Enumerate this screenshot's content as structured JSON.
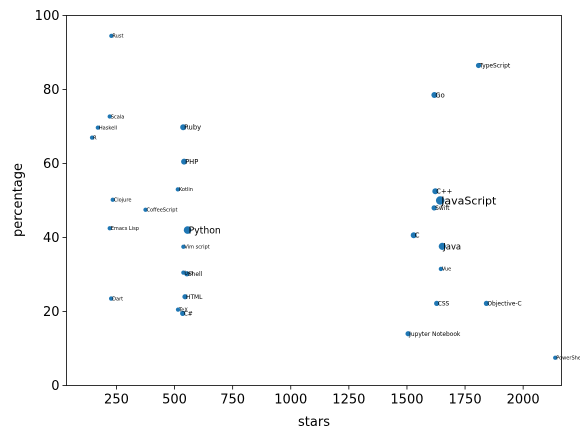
{
  "chart_data": {
    "type": "scatter",
    "title": "",
    "xlabel": "stars",
    "ylabel": "percentage",
    "xlim": [
      35,
      2165
    ],
    "ylim": [
      0,
      100
    ],
    "xticks": [
      250,
      500,
      750,
      1000,
      1250,
      1500,
      1750,
      2000
    ],
    "yticks": [
      0,
      20,
      40,
      60,
      80,
      100
    ],
    "point_color": "#1f77b4",
    "grid": false,
    "points": [
      {
        "label": "Rust",
        "x": 228,
        "y": 94.5,
        "size": 1
      },
      {
        "label": "TypeScript",
        "x": 1808,
        "y": 86.5,
        "size": 2
      },
      {
        "label": "Go",
        "x": 1618,
        "y": 78.5,
        "size": 3
      },
      {
        "label": "Scala",
        "x": 221,
        "y": 72.7,
        "size": 1
      },
      {
        "label": "Haskell",
        "x": 170,
        "y": 69.7,
        "size": 1
      },
      {
        "label": "Ruby",
        "x": 537,
        "y": 69.8,
        "size": 3
      },
      {
        "label": "R",
        "x": 145,
        "y": 67,
        "size": 1
      },
      {
        "label": "PHP",
        "x": 541,
        "y": 60.5,
        "size": 3
      },
      {
        "label": "Kotlin",
        "x": 514,
        "y": 53,
        "size": 1
      },
      {
        "label": "C++",
        "x": 1622,
        "y": 52.5,
        "size": 3
      },
      {
        "label": "JavaScript",
        "x": 1643,
        "y": 50,
        "size": 8
      },
      {
        "label": "Clojure",
        "x": 234,
        "y": 50.2,
        "size": 1
      },
      {
        "label": "Swift",
        "x": 1617,
        "y": 48,
        "size": 2
      },
      {
        "label": "CoffeeScript",
        "x": 375,
        "y": 47.5,
        "size": 1
      },
      {
        "label": "Python",
        "x": 556,
        "y": 42,
        "size": 6
      },
      {
        "label": "Emacs Lisp",
        "x": 221,
        "y": 42.5,
        "size": 1
      },
      {
        "label": "C",
        "x": 1529,
        "y": 40.6,
        "size": 3
      },
      {
        "label": "Vim script",
        "x": 538,
        "y": 37.5,
        "size": 1
      },
      {
        "label": "Java",
        "x": 1652,
        "y": 37.6,
        "size": 5
      },
      {
        "label": "Vue",
        "x": 1646,
        "y": 31.5,
        "size": 1
      },
      {
        "label": "Lua",
        "x": 538,
        "y": 30.5,
        "size": 1
      },
      {
        "label": "Shell",
        "x": 553,
        "y": 30.2,
        "size": 2
      },
      {
        "label": "HTML",
        "x": 545,
        "y": 24,
        "size": 2
      },
      {
        "label": "Dart",
        "x": 227,
        "y": 23.5,
        "size": 1
      },
      {
        "label": "CSS",
        "x": 1628,
        "y": 22.2,
        "size": 2
      },
      {
        "label": "Objective-C",
        "x": 1842,
        "y": 22.2,
        "size": 2
      },
      {
        "label": "TeX",
        "x": 515,
        "y": 20.5,
        "size": 1
      },
      {
        "label": "C#",
        "x": 535,
        "y": 19.5,
        "size": 2
      },
      {
        "label": "Jupyter Notebook",
        "x": 1505,
        "y": 14,
        "size": 2
      },
      {
        "label": "PowerShell",
        "x": 2138,
        "y": 7.5,
        "size": 1
      }
    ]
  }
}
